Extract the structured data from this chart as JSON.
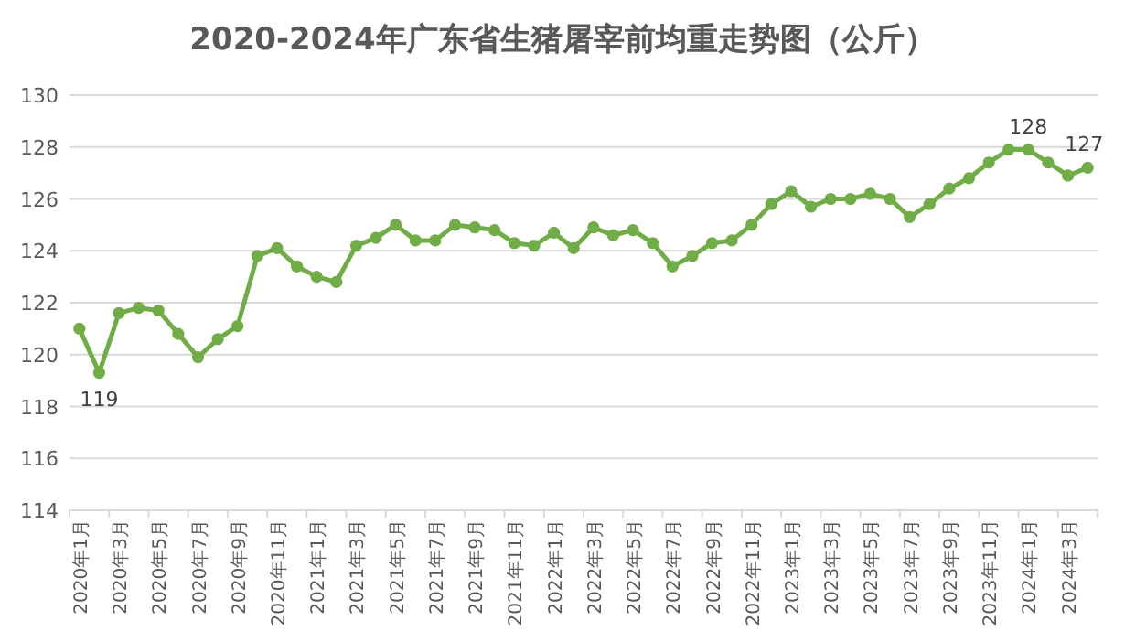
{
  "chart_data": {
    "type": "line",
    "title": "2020-2024年广东省生猪屠宰前均重走势图（公斤）",
    "categories": [
      "2020年1月",
      null,
      "2020年3月",
      null,
      "2020年5月",
      null,
      "2020年7月",
      null,
      "2020年9月",
      null,
      "2020年11月",
      null,
      "2021年1月",
      null,
      "2021年3月",
      null,
      "2021年5月",
      null,
      "2021年7月",
      null,
      "2021年9月",
      null,
      "2021年11月",
      null,
      "2022年1月",
      null,
      "2022年3月",
      null,
      "2022年5月",
      null,
      "2022年7月",
      null,
      "2022年9月",
      null,
      "2022年11月",
      null,
      "2023年1月",
      null,
      "2023年3月",
      null,
      "2023年5月",
      null,
      "2023年7月",
      null,
      "2023年9月",
      null,
      "2023年11月",
      null,
      "2024年1月",
      null,
      "2024年3月",
      null
    ],
    "values": [
      121.0,
      119.3,
      121.6,
      121.8,
      121.7,
      120.8,
      119.9,
      120.6,
      121.1,
      123.8,
      124.1,
      123.4,
      123.0,
      122.8,
      124.2,
      124.5,
      125.0,
      124.4,
      124.4,
      125.0,
      124.9,
      124.8,
      124.3,
      124.2,
      124.7,
      124.1,
      124.9,
      124.6,
      124.8,
      124.3,
      123.4,
      123.8,
      124.3,
      124.4,
      125.0,
      125.8,
      126.3,
      125.7,
      126.0,
      126.0,
      126.2,
      126.0,
      125.3,
      125.8,
      126.4,
      126.8,
      127.4,
      127.9,
      127.9,
      127.4,
      126.9,
      127.2
    ],
    "value_labels": [
      null,
      "119",
      null,
      null,
      null,
      null,
      null,
      null,
      null,
      null,
      null,
      null,
      null,
      null,
      null,
      null,
      null,
      null,
      null,
      null,
      null,
      null,
      null,
      null,
      null,
      null,
      null,
      null,
      null,
      null,
      null,
      null,
      null,
      null,
      null,
      null,
      null,
      null,
      null,
      null,
      null,
      null,
      null,
      null,
      null,
      null,
      null,
      null,
      "128",
      null,
      null,
      "127"
    ],
    "color": "#70ad47",
    "ylim": [
      114,
      130
    ],
    "yticks": [
      114,
      116,
      118,
      120,
      122,
      124,
      126,
      128,
      130
    ],
    "grid": "y",
    "marker": "circle",
    "line_style": "solid"
  }
}
